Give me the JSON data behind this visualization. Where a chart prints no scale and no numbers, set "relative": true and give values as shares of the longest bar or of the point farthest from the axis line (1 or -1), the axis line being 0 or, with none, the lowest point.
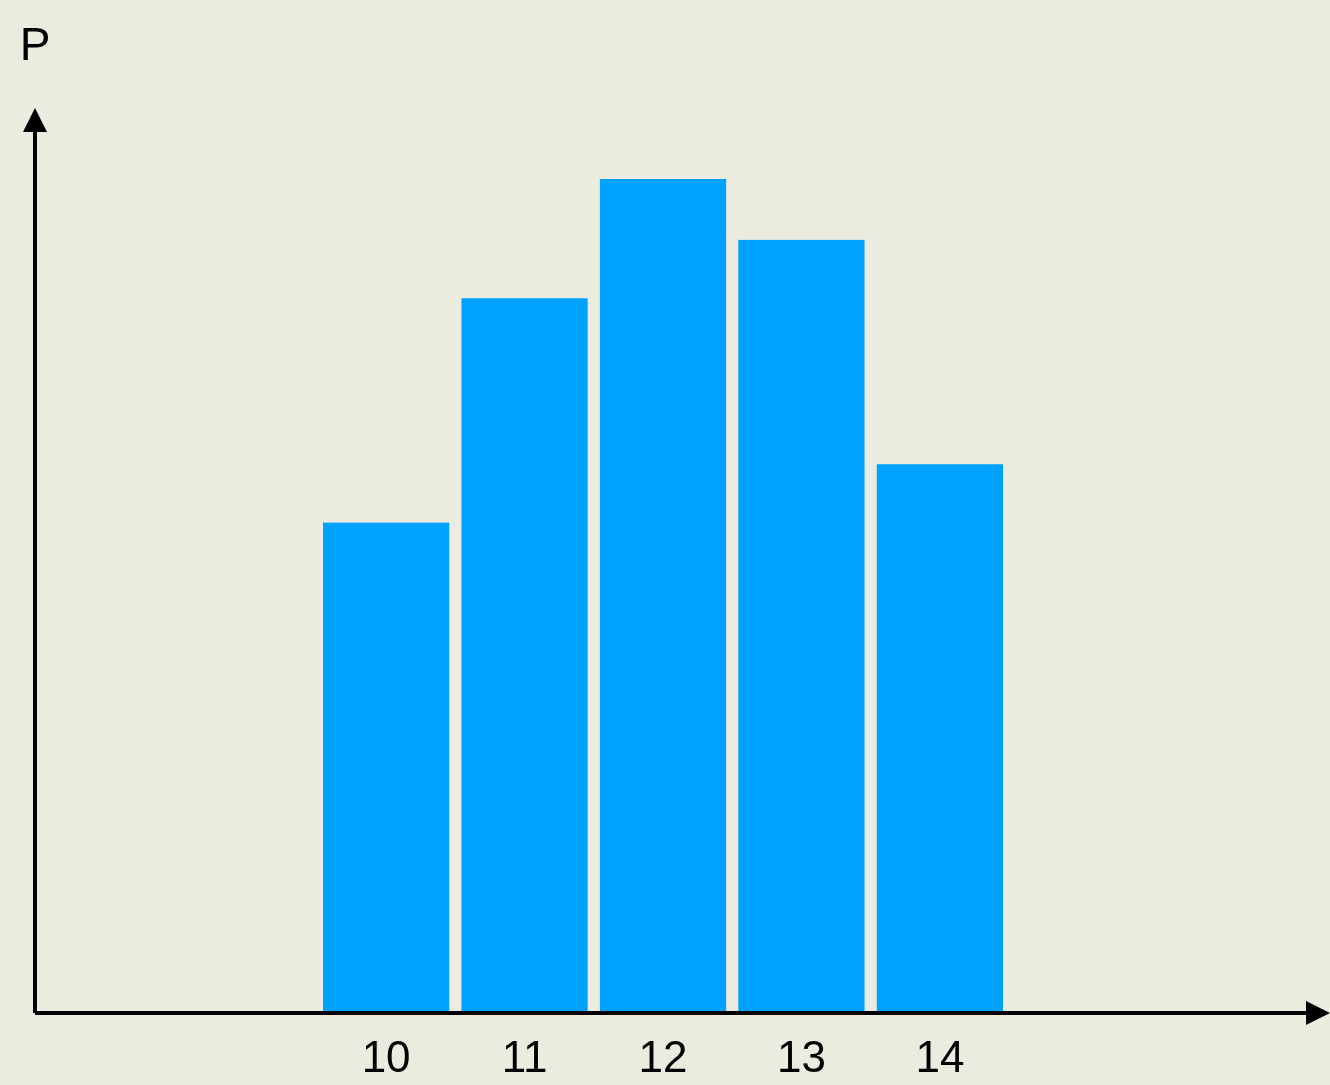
{
  "chart_data": {
    "type": "bar",
    "annotations": [
      "P"
    ],
    "categories": [
      "10",
      "11",
      "12",
      "13",
      "14"
    ],
    "values": [
      0.588,
      0.857,
      1,
      0.927,
      0.658
    ],
    "color": "#00a2ff",
    "relative": true
  }
}
